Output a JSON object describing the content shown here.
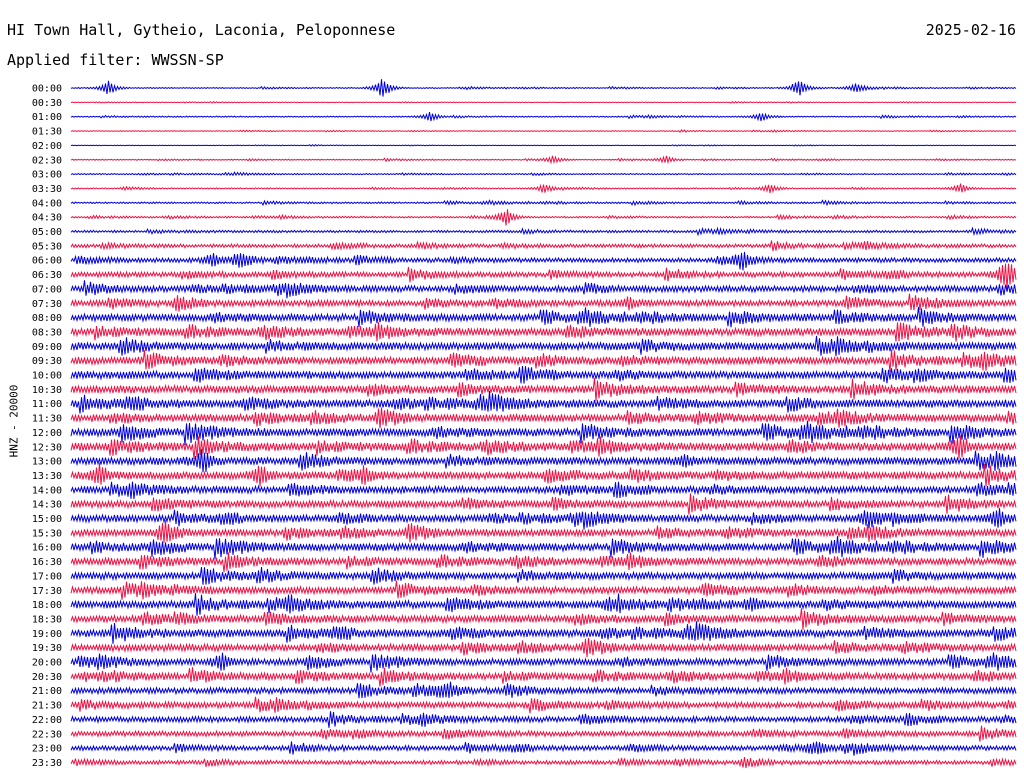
{
  "header": {
    "station": "HI Town Hall, Gytheio, Laconia, Peloponnese",
    "date": "2025-02-16",
    "filter_label": "Applied filter: WWSSN-SP",
    "channel_label": "HNZ - 20000"
  },
  "colors": {
    "odd_row": "#0000dd",
    "even_row": "#ee1144",
    "background": "#ffffff"
  },
  "chart_data": {
    "type": "line",
    "title": "HI Town Hall, Gytheio, Laconia, Peloponnese",
    "date": "2025-02-16",
    "ylabel": "HNZ - 20000",
    "row_labels": [
      "00:00",
      "00:30",
      "01:00",
      "01:30",
      "02:00",
      "02:30",
      "03:00",
      "03:30",
      "04:00",
      "04:30",
      "05:00",
      "05:30",
      "06:00",
      "06:30",
      "07:00",
      "07:30",
      "08:00",
      "08:30",
      "09:00",
      "09:30",
      "10:00",
      "10:30",
      "11:00",
      "11:30",
      "12:00",
      "12:30",
      "13:00",
      "13:30",
      "14:00",
      "14:30",
      "15:00",
      "15:30",
      "16:00",
      "16:30",
      "17:00",
      "17:30",
      "18:00",
      "18:30",
      "19:00",
      "19:30",
      "20:00",
      "20:30",
      "21:00",
      "21:30",
      "22:00",
      "22:30",
      "23:00",
      "23:30"
    ],
    "row_minutes": 30,
    "colors": [
      "#0000dd",
      "#ee1144"
    ],
    "noise_level": [
      0.5,
      0.3,
      0.6,
      0.4,
      0.3,
      0.5,
      0.6,
      0.6,
      0.8,
      0.8,
      1.2,
      1.8,
      2.2,
      2.5,
      3.0,
      3.0,
      3.5,
      3.8,
      3.8,
      3.8,
      3.8,
      3.8,
      4.0,
      3.8,
      4.0,
      4.0,
      3.8,
      3.8,
      3.5,
      3.5,
      3.5,
      3.5,
      3.8,
      3.5,
      3.5,
      3.5,
      3.8,
      3.5,
      3.8,
      3.5,
      3.3,
      3.3,
      3.0,
      3.0,
      2.8,
      2.6,
      2.4,
      2.0
    ],
    "events": [
      {
        "row": 0,
        "pos": 0.04,
        "amp": 8
      },
      {
        "row": 0,
        "pos": 0.33,
        "amp": 12
      },
      {
        "row": 0,
        "pos": 0.77,
        "amp": 8
      },
      {
        "row": 0,
        "pos": 0.83,
        "amp": 5
      },
      {
        "row": 2,
        "pos": 0.38,
        "amp": 5
      },
      {
        "row": 2,
        "pos": 0.73,
        "amp": 5
      },
      {
        "row": 5,
        "pos": 0.51,
        "amp": 4
      },
      {
        "row": 5,
        "pos": 0.63,
        "amp": 4
      },
      {
        "row": 7,
        "pos": 0.5,
        "amp": 4
      },
      {
        "row": 7,
        "pos": 0.74,
        "amp": 5
      },
      {
        "row": 7,
        "pos": 0.94,
        "amp": 5
      },
      {
        "row": 9,
        "pos": 0.46,
        "amp": 9
      },
      {
        "row": 12,
        "pos": 0.15,
        "amp": 7
      },
      {
        "row": 12,
        "pos": 0.18,
        "amp": 7
      },
      {
        "row": 12,
        "pos": 0.71,
        "amp": 7
      },
      {
        "row": 13,
        "pos": 0.99,
        "amp": 14
      },
      {
        "row": 15,
        "pos": 0.59,
        "amp": 6
      },
      {
        "row": 25,
        "pos": 0.94,
        "amp": 12
      },
      {
        "row": 26,
        "pos": 0.14,
        "amp": 12
      },
      {
        "row": 26,
        "pos": 0.65,
        "amp": 6
      },
      {
        "row": 27,
        "pos": 0.03,
        "amp": 11
      },
      {
        "row": 27,
        "pos": 0.2,
        "amp": 10
      },
      {
        "row": 27,
        "pos": 0.31,
        "amp": 7
      },
      {
        "row": 30,
        "pos": 0.84,
        "amp": 7
      },
      {
        "row": 30,
        "pos": 0.98,
        "amp": 10
      },
      {
        "row": 31,
        "pos": 0.1,
        "amp": 7
      },
      {
        "row": 36,
        "pos": 0.57,
        "amp": 6
      },
      {
        "row": 36,
        "pos": 0.72,
        "amp": 7
      },
      {
        "row": 40,
        "pos": 0.16,
        "amp": 9
      },
      {
        "row": 42,
        "pos": 0.4,
        "amp": 6
      },
      {
        "row": 46,
        "pos": 0.79,
        "amp": 6
      }
    ]
  }
}
